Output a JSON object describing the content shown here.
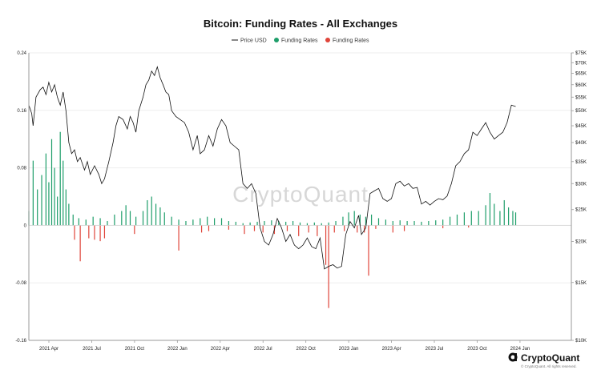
{
  "chart_data": {
    "type": "bar+line",
    "title": "Bitcoin: Funding Rates - All Exchanges",
    "watermark": "CryptoQuant",
    "brand": {
      "name": "CryptoQuant",
      "copyright": "© CryptoQuant. All rights reserved."
    },
    "legend": [
      {
        "name": "Price USD",
        "color": "#111111",
        "kind": "line"
      },
      {
        "name": "Funding Rates",
        "color": "#1e9e6a",
        "kind": "dot"
      },
      {
        "name": "Funding Rates",
        "color": "#e0453a",
        "kind": "dot"
      }
    ],
    "x_ticks": [
      "2021 Apr",
      "2021 Jul",
      "2021 Oct",
      "2022 Jan",
      "2022 Apr",
      "2022 Jul",
      "2022 Oct",
      "2023 Jan",
      "2023 Apr",
      "2023 Jul",
      "2023 Oct",
      "2024 Jan"
    ],
    "y_left": {
      "ticks": [
        "0.24",
        "0.16",
        "0.08",
        "0",
        "-0.08",
        "-0.16"
      ],
      "values": [
        0.24,
        0.16,
        0.08,
        0,
        -0.08,
        -0.16
      ],
      "range": [
        -0.16,
        0.24
      ]
    },
    "y_right": {
      "ticks": [
        "$75K",
        "$70K",
        "$65K",
        "$60K",
        "$55K",
        "$50K",
        "$45K",
        "$40K",
        "$35K",
        "$30K",
        "$25K",
        "$20K",
        "$15K",
        "$10K"
      ],
      "values": [
        75000,
        70000,
        65000,
        60000,
        55000,
        50000,
        45000,
        40000,
        35000,
        30000,
        25000,
        20000,
        15000,
        10000
      ],
      "scale": "log",
      "range": [
        10000,
        75000
      ]
    },
    "x_range_months": [
      0,
      38
    ],
    "price_series": {
      "name": "Price USD",
      "color": "#111111",
      "points": [
        [
          0,
          52000
        ],
        [
          0.2,
          49000
        ],
        [
          0.3,
          45000
        ],
        [
          0.5,
          55000
        ],
        [
          0.8,
          58000
        ],
        [
          1.0,
          59000
        ],
        [
          1.2,
          56000
        ],
        [
          1.4,
          61000
        ],
        [
          1.6,
          57000
        ],
        [
          1.8,
          60000
        ],
        [
          2.0,
          55000
        ],
        [
          2.2,
          52000
        ],
        [
          2.4,
          57000
        ],
        [
          2.6,
          50000
        ],
        [
          2.8,
          40000
        ],
        [
          3.0,
          37000
        ],
        [
          3.2,
          38000
        ],
        [
          3.4,
          35000
        ],
        [
          3.6,
          36000
        ],
        [
          3.9,
          33000
        ],
        [
          4.1,
          35000
        ],
        [
          4.3,
          32000
        ],
        [
          4.6,
          34000
        ],
        [
          4.9,
          32000
        ],
        [
          5.1,
          30000
        ],
        [
          5.3,
          31000
        ],
        [
          5.6,
          35000
        ],
        [
          5.9,
          40000
        ],
        [
          6.1,
          45000
        ],
        [
          6.3,
          48000
        ],
        [
          6.6,
          47000
        ],
        [
          6.9,
          44000
        ],
        [
          7.1,
          48000
        ],
        [
          7.3,
          46000
        ],
        [
          7.5,
          43000
        ],
        [
          7.7,
          50000
        ],
        [
          8.0,
          55000
        ],
        [
          8.2,
          60000
        ],
        [
          8.4,
          62000
        ],
        [
          8.6,
          66000
        ],
        [
          8.8,
          64000
        ],
        [
          9.0,
          68000
        ],
        [
          9.2,
          63000
        ],
        [
          9.4,
          60000
        ],
        [
          9.6,
          57000
        ],
        [
          9.8,
          56000
        ],
        [
          10.0,
          50000
        ],
        [
          10.3,
          48000
        ],
        [
          10.6,
          47000
        ],
        [
          10.9,
          46000
        ],
        [
          11.2,
          43000
        ],
        [
          11.5,
          38000
        ],
        [
          11.8,
          42000
        ],
        [
          12.0,
          37000
        ],
        [
          12.3,
          38000
        ],
        [
          12.6,
          42000
        ],
        [
          12.9,
          39000
        ],
        [
          13.2,
          44000
        ],
        [
          13.5,
          47000
        ],
        [
          13.8,
          45000
        ],
        [
          14.1,
          40000
        ],
        [
          14.4,
          39000
        ],
        [
          14.7,
          38000
        ],
        [
          15.0,
          30000
        ],
        [
          15.3,
          29000
        ],
        [
          15.6,
          30000
        ],
        [
          15.9,
          28000
        ],
        [
          16.2,
          22000
        ],
        [
          16.5,
          20000
        ],
        [
          16.8,
          19500
        ],
        [
          17.1,
          21000
        ],
        [
          17.4,
          23500
        ],
        [
          17.7,
          22000
        ],
        [
          18.0,
          20000
        ],
        [
          18.3,
          21000
        ],
        [
          18.6,
          19500
        ],
        [
          18.9,
          19000
        ],
        [
          19.2,
          19500
        ],
        [
          19.5,
          20500
        ],
        [
          19.8,
          19300
        ],
        [
          20.1,
          19000
        ],
        [
          20.4,
          20500
        ],
        [
          20.7,
          16500
        ],
        [
          21.0,
          16800
        ],
        [
          21.3,
          17000
        ],
        [
          21.6,
          16600
        ],
        [
          21.9,
          16800
        ],
        [
          22.2,
          21000
        ],
        [
          22.5,
          23000
        ],
        [
          22.8,
          22000
        ],
        [
          23.1,
          24000
        ],
        [
          23.3,
          21000
        ],
        [
          23.6,
          22000
        ],
        [
          23.9,
          28000
        ],
        [
          24.2,
          28500
        ],
        [
          24.5,
          29000
        ],
        [
          24.8,
          27000
        ],
        [
          25.1,
          26500
        ],
        [
          25.4,
          27000
        ],
        [
          25.7,
          30000
        ],
        [
          26.0,
          30500
        ],
        [
          26.3,
          29500
        ],
        [
          26.6,
          30000
        ],
        [
          26.9,
          29000
        ],
        [
          27.2,
          29200
        ],
        [
          27.5,
          26000
        ],
        [
          27.8,
          26500
        ],
        [
          28.1,
          25800
        ],
        [
          28.4,
          26500
        ],
        [
          28.7,
          27000
        ],
        [
          29.0,
          26800
        ],
        [
          29.3,
          27500
        ],
        [
          29.6,
          30000
        ],
        [
          29.9,
          34000
        ],
        [
          30.2,
          35000
        ],
        [
          30.5,
          37000
        ],
        [
          30.8,
          38000
        ],
        [
          31.1,
          43000
        ],
        [
          31.4,
          42000
        ],
        [
          31.7,
          44000
        ],
        [
          32.0,
          46000
        ],
        [
          32.3,
          43000
        ],
        [
          32.6,
          41000
        ],
        [
          32.9,
          42000
        ],
        [
          33.2,
          43000
        ],
        [
          33.5,
          46000
        ],
        [
          33.8,
          52000
        ],
        [
          34.1,
          51500
        ]
      ]
    },
    "funding_positive": [
      [
        0,
        0.02
      ],
      [
        0.3,
        0.09
      ],
      [
        0.6,
        0.05
      ],
      [
        0.9,
        0.07
      ],
      [
        1.2,
        0.1
      ],
      [
        1.4,
        0.06
      ],
      [
        1.6,
        0.12
      ],
      [
        1.8,
        0.08
      ],
      [
        2.0,
        0.04
      ],
      [
        2.2,
        0.13
      ],
      [
        2.4,
        0.09
      ],
      [
        2.6,
        0.05
      ],
      [
        2.8,
        0.03
      ],
      [
        3.1,
        0.015
      ],
      [
        3.5,
        0.01
      ],
      [
        4.0,
        0.008
      ],
      [
        4.5,
        0.012
      ],
      [
        5.0,
        0.01
      ],
      [
        5.5,
        0.006
      ],
      [
        6.0,
        0.015
      ],
      [
        6.5,
        0.02
      ],
      [
        6.8,
        0.028
      ],
      [
        7.1,
        0.02
      ],
      [
        7.5,
        0.012
      ],
      [
        8.0,
        0.02
      ],
      [
        8.3,
        0.035
      ],
      [
        8.6,
        0.04
      ],
      [
        8.9,
        0.03
      ],
      [
        9.2,
        0.025
      ],
      [
        9.5,
        0.018
      ],
      [
        10.0,
        0.012
      ],
      [
        10.5,
        0.008
      ],
      [
        11.0,
        0.006
      ],
      [
        11.5,
        0.008
      ],
      [
        12.0,
        0.01
      ],
      [
        12.5,
        0.012
      ],
      [
        13.0,
        0.01
      ],
      [
        13.5,
        0.01
      ],
      [
        14.0,
        0.006
      ],
      [
        14.5,
        0.005
      ],
      [
        15.0,
        0.003
      ],
      [
        15.5,
        0.004
      ],
      [
        16.0,
        0.005
      ],
      [
        16.5,
        0.006
      ],
      [
        17.0,
        0.007
      ],
      [
        17.5,
        0.006
      ],
      [
        18.0,
        0.005
      ],
      [
        18.5,
        0.006
      ],
      [
        19.0,
        0.004
      ],
      [
        19.5,
        0.003
      ],
      [
        20.0,
        0.004
      ],
      [
        20.5,
        0.003
      ],
      [
        21.0,
        0.004
      ],
      [
        21.5,
        0.006
      ],
      [
        22.0,
        0.012
      ],
      [
        22.4,
        0.018
      ],
      [
        22.8,
        0.02
      ],
      [
        23.2,
        0.015
      ],
      [
        23.6,
        0.012
      ],
      [
        24.0,
        0.015
      ],
      [
        24.5,
        0.01
      ],
      [
        25.0,
        0.008
      ],
      [
        25.5,
        0.006
      ],
      [
        26.0,
        0.007
      ],
      [
        26.5,
        0.006
      ],
      [
        27.0,
        0.006
      ],
      [
        27.5,
        0.005
      ],
      [
        28.0,
        0.006
      ],
      [
        28.5,
        0.007
      ],
      [
        29.0,
        0.008
      ],
      [
        29.5,
        0.012
      ],
      [
        30.0,
        0.015
      ],
      [
        30.5,
        0.018
      ],
      [
        31.0,
        0.02
      ],
      [
        31.5,
        0.02
      ],
      [
        32.0,
        0.028
      ],
      [
        32.3,
        0.045
      ],
      [
        32.6,
        0.03
      ],
      [
        33.0,
        0.02
      ],
      [
        33.3,
        0.035
      ],
      [
        33.6,
        0.025
      ],
      [
        33.9,
        0.02
      ],
      [
        34.1,
        0.018
      ]
    ],
    "funding_negative": [
      [
        3.2,
        -0.02
      ],
      [
        3.6,
        -0.05
      ],
      [
        4.2,
        -0.018
      ],
      [
        4.6,
        -0.02
      ],
      [
        5.0,
        -0.022
      ],
      [
        5.3,
        -0.018
      ],
      [
        7.4,
        -0.012
      ],
      [
        10.5,
        -0.035
      ],
      [
        12.1,
        -0.01
      ],
      [
        12.6,
        -0.008
      ],
      [
        14.0,
        -0.006
      ],
      [
        15.1,
        -0.012
      ],
      [
        15.8,
        -0.008
      ],
      [
        16.4,
        -0.01
      ],
      [
        17.2,
        -0.012
      ],
      [
        18.1,
        -0.008
      ],
      [
        18.9,
        -0.015
      ],
      [
        19.6,
        -0.01
      ],
      [
        20.2,
        -0.015
      ],
      [
        20.8,
        -0.055
      ],
      [
        21.0,
        -0.115
      ],
      [
        21.4,
        -0.01
      ],
      [
        22.1,
        -0.008
      ],
      [
        23.0,
        -0.01
      ],
      [
        23.5,
        -0.01
      ],
      [
        23.8,
        -0.07
      ],
      [
        24.3,
        -0.005
      ],
      [
        25.5,
        -0.01
      ],
      [
        26.3,
        -0.008
      ],
      [
        29.0,
        -0.004
      ],
      [
        30.8,
        -0.003
      ]
    ]
  }
}
